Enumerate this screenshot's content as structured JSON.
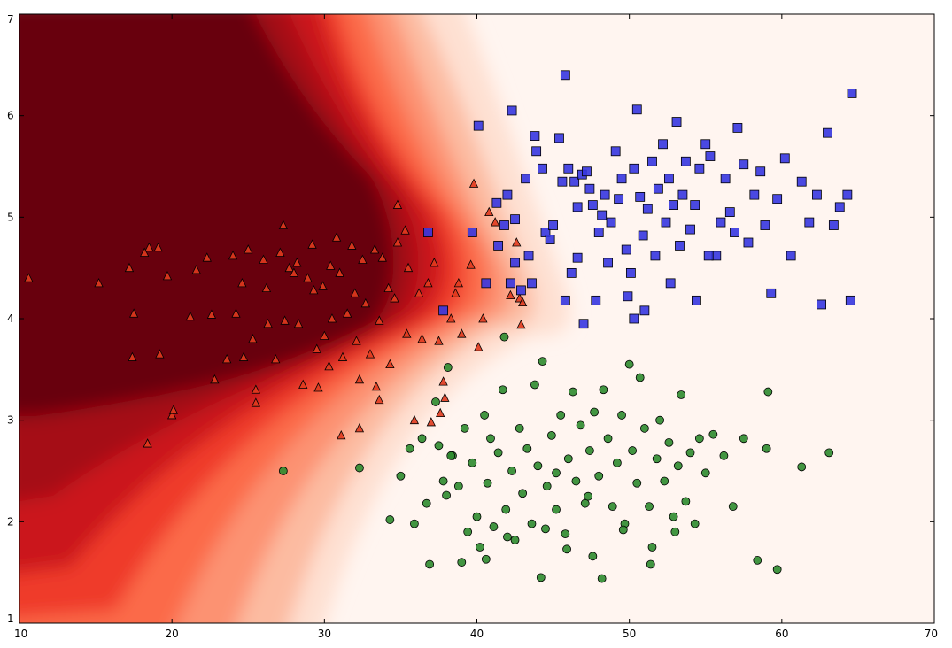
{
  "chart_data": {
    "type": "scatter",
    "title": "",
    "xlabel": "",
    "ylabel": "",
    "xlim": [
      10,
      70
    ],
    "ylim": [
      1,
      7
    ],
    "x_ticks": [
      "10",
      "20",
      "30",
      "40",
      "50",
      "60",
      "70"
    ],
    "y_ticks": [
      "1",
      "2",
      "3",
      "4",
      "5",
      "6",
      "7"
    ],
    "grid": false,
    "legend": "none",
    "background": {
      "kind": "filled-contour",
      "colormap": "Reds",
      "colors": [
        "#fff5f0",
        "#fee0d2",
        "#fcbba1",
        "#fc9272",
        "#fb6a4a",
        "#ef3b2c",
        "#cb181d",
        "#a50f15",
        "#67000d"
      ],
      "description": "probability of triangle class"
    },
    "series": [
      {
        "marker": "triangle",
        "color": "#e03a1e",
        "points": [
          [
            10.6,
            4.4
          ],
          [
            15.2,
            4.35
          ],
          [
            17.2,
            4.5
          ],
          [
            17.5,
            4.05
          ],
          [
            17.4,
            3.62
          ],
          [
            18.2,
            4.65
          ],
          [
            18.5,
            4.7
          ],
          [
            18.4,
            2.77
          ],
          [
            19.1,
            4.7
          ],
          [
            19.2,
            3.65
          ],
          [
            19.7,
            4.42
          ],
          [
            20.0,
            3.05
          ],
          [
            20.1,
            3.1
          ],
          [
            21.2,
            4.02
          ],
          [
            21.6,
            4.48
          ],
          [
            22.3,
            4.6
          ],
          [
            22.6,
            4.04
          ],
          [
            22.8,
            3.4
          ],
          [
            23.6,
            3.6
          ],
          [
            24.0,
            4.62
          ],
          [
            24.2,
            4.05
          ],
          [
            24.6,
            4.35
          ],
          [
            25.0,
            4.68
          ],
          [
            24.7,
            3.62
          ],
          [
            25.3,
            3.8
          ],
          [
            25.5,
            3.3
          ],
          [
            25.5,
            3.17
          ],
          [
            26.0,
            4.58
          ],
          [
            26.2,
            4.3
          ],
          [
            26.3,
            3.95
          ],
          [
            26.8,
            3.6
          ],
          [
            27.1,
            4.65
          ],
          [
            27.3,
            4.92
          ],
          [
            27.7,
            4.5
          ],
          [
            27.4,
            3.98
          ],
          [
            28.0,
            4.45
          ],
          [
            28.2,
            4.55
          ],
          [
            28.3,
            3.95
          ],
          [
            28.6,
            3.35
          ],
          [
            28.9,
            4.4
          ],
          [
            29.2,
            4.73
          ],
          [
            29.3,
            4.28
          ],
          [
            29.5,
            3.7
          ],
          [
            29.6,
            3.32
          ],
          [
            29.9,
            4.32
          ],
          [
            30.0,
            3.83
          ],
          [
            30.3,
            3.53
          ],
          [
            30.4,
            4.52
          ],
          [
            30.5,
            4.0
          ],
          [
            30.8,
            4.8
          ],
          [
            31.0,
            4.45
          ],
          [
            31.2,
            3.62
          ],
          [
            31.1,
            2.85
          ],
          [
            31.5,
            4.05
          ],
          [
            31.8,
            4.72
          ],
          [
            32.0,
            4.25
          ],
          [
            32.1,
            3.78
          ],
          [
            32.3,
            3.4
          ],
          [
            32.3,
            2.92
          ],
          [
            32.5,
            4.58
          ],
          [
            32.7,
            4.15
          ],
          [
            33.0,
            3.65
          ],
          [
            33.3,
            4.68
          ],
          [
            33.4,
            3.33
          ],
          [
            33.6,
            3.98
          ],
          [
            33.6,
            3.2
          ],
          [
            33.8,
            4.6
          ],
          [
            34.2,
            4.3
          ],
          [
            34.3,
            3.55
          ],
          [
            34.6,
            4.2
          ],
          [
            34.8,
            5.12
          ],
          [
            34.8,
            4.75
          ],
          [
            35.3,
            4.87
          ],
          [
            35.4,
            3.85
          ],
          [
            35.5,
            4.5
          ],
          [
            35.9,
            3.0
          ],
          [
            36.2,
            4.25
          ],
          [
            36.4,
            3.8
          ],
          [
            36.8,
            4.35
          ],
          [
            37.0,
            2.98
          ],
          [
            37.2,
            4.55
          ],
          [
            37.5,
            3.78
          ],
          [
            37.8,
            3.38
          ],
          [
            37.9,
            3.22
          ],
          [
            37.6,
            3.07
          ],
          [
            38.3,
            4.0
          ],
          [
            38.6,
            4.25
          ],
          [
            38.8,
            4.35
          ],
          [
            39.0,
            3.85
          ],
          [
            39.6,
            4.53
          ],
          [
            39.8,
            5.33
          ],
          [
            40.1,
            3.72
          ],
          [
            40.4,
            4.0
          ],
          [
            40.8,
            5.05
          ],
          [
            41.2,
            4.95
          ],
          [
            42.2,
            4.23
          ],
          [
            42.6,
            4.75
          ],
          [
            42.8,
            4.2
          ],
          [
            43.0,
            4.16
          ],
          [
            42.9,
            3.94
          ]
        ]
      },
      {
        "marker": "square",
        "color": "#3636e0",
        "points": [
          [
            36.8,
            4.85
          ],
          [
            37.8,
            4.08
          ],
          [
            39.7,
            4.85
          ],
          [
            40.1,
            5.9
          ],
          [
            40.6,
            4.35
          ],
          [
            41.3,
            5.14
          ],
          [
            41.4,
            4.72
          ],
          [
            41.8,
            4.92
          ],
          [
            42.0,
            5.22
          ],
          [
            42.2,
            4.35
          ],
          [
            42.3,
            6.05
          ],
          [
            42.5,
            4.98
          ],
          [
            42.5,
            4.55
          ],
          [
            42.9,
            4.28
          ],
          [
            43.2,
            5.38
          ],
          [
            43.4,
            4.62
          ],
          [
            43.6,
            4.35
          ],
          [
            43.8,
            5.8
          ],
          [
            43.9,
            5.65
          ],
          [
            44.3,
            5.48
          ],
          [
            44.5,
            4.85
          ],
          [
            44.8,
            4.78
          ],
          [
            45.0,
            4.92
          ],
          [
            45.4,
            5.78
          ],
          [
            45.6,
            5.35
          ],
          [
            45.8,
            6.4
          ],
          [
            46.0,
            5.48
          ],
          [
            46.4,
            5.35
          ],
          [
            46.6,
            5.1
          ],
          [
            46.9,
            5.42
          ],
          [
            47.2,
            5.45
          ],
          [
            47.4,
            5.28
          ],
          [
            47.6,
            5.12
          ],
          [
            47.8,
            4.18
          ],
          [
            48.0,
            4.85
          ],
          [
            48.2,
            5.02
          ],
          [
            48.4,
            5.22
          ],
          [
            48.6,
            4.55
          ],
          [
            48.8,
            4.95
          ],
          [
            49.1,
            5.65
          ],
          [
            49.3,
            5.18
          ],
          [
            49.5,
            5.38
          ],
          [
            49.8,
            4.68
          ],
          [
            50.1,
            4.45
          ],
          [
            50.3,
            5.48
          ],
          [
            50.5,
            6.06
          ],
          [
            50.7,
            5.2
          ],
          [
            50.9,
            4.82
          ],
          [
            51.2,
            5.08
          ],
          [
            51.5,
            5.55
          ],
          [
            51.7,
            4.62
          ],
          [
            51.9,
            5.28
          ],
          [
            52.2,
            5.72
          ],
          [
            52.4,
            4.95
          ],
          [
            52.6,
            5.38
          ],
          [
            52.9,
            5.12
          ],
          [
            53.1,
            5.94
          ],
          [
            53.3,
            4.72
          ],
          [
            53.5,
            5.22
          ],
          [
            53.7,
            5.55
          ],
          [
            54.0,
            4.88
          ],
          [
            54.3,
            5.12
          ],
          [
            54.6,
            5.48
          ],
          [
            55.0,
            5.72
          ],
          [
            55.3,
            5.6
          ],
          [
            55.7,
            4.62
          ],
          [
            56.0,
            4.95
          ],
          [
            56.3,
            5.38
          ],
          [
            56.6,
            5.05
          ],
          [
            56.9,
            4.85
          ],
          [
            57.1,
            5.88
          ],
          [
            57.5,
            5.52
          ],
          [
            57.8,
            4.75
          ],
          [
            58.2,
            5.22
          ],
          [
            58.6,
            5.45
          ],
          [
            58.9,
            4.92
          ],
          [
            59.3,
            4.25
          ],
          [
            59.7,
            5.18
          ],
          [
            60.2,
            5.58
          ],
          [
            60.6,
            4.62
          ],
          [
            61.3,
            5.35
          ],
          [
            61.8,
            4.95
          ],
          [
            62.3,
            5.22
          ],
          [
            62.6,
            4.14
          ],
          [
            63.0,
            5.83
          ],
          [
            63.4,
            4.92
          ],
          [
            63.8,
            5.1
          ],
          [
            64.3,
            5.22
          ],
          [
            64.6,
            6.22
          ],
          [
            64.5,
            4.18
          ],
          [
            46.2,
            4.45
          ],
          [
            47.0,
            3.95
          ],
          [
            49.9,
            4.22
          ],
          [
            51.0,
            4.08
          ],
          [
            52.7,
            4.35
          ],
          [
            54.4,
            4.18
          ],
          [
            55.2,
            4.62
          ],
          [
            50.3,
            4.0
          ],
          [
            46.6,
            4.6
          ],
          [
            45.8,
            4.18
          ]
        ]
      },
      {
        "marker": "circle",
        "color": "#2e8b2e",
        "points": [
          [
            27.3,
            2.5
          ],
          [
            32.3,
            2.53
          ],
          [
            34.3,
            2.02
          ],
          [
            35.0,
            2.45
          ],
          [
            35.6,
            2.72
          ],
          [
            35.9,
            1.98
          ],
          [
            36.4,
            2.82
          ],
          [
            36.7,
            2.18
          ],
          [
            36.9,
            1.58
          ],
          [
            37.3,
            3.18
          ],
          [
            37.5,
            2.75
          ],
          [
            37.8,
            2.4
          ],
          [
            38.0,
            2.26
          ],
          [
            38.1,
            3.52
          ],
          [
            38.4,
            2.65
          ],
          [
            38.8,
            2.35
          ],
          [
            39.0,
            1.6
          ],
          [
            39.2,
            2.92
          ],
          [
            39.4,
            1.9
          ],
          [
            39.7,
            2.58
          ],
          [
            40.0,
            2.05
          ],
          [
            40.2,
            1.75
          ],
          [
            40.5,
            3.05
          ],
          [
            40.7,
            2.38
          ],
          [
            40.9,
            2.82
          ],
          [
            41.1,
            1.95
          ],
          [
            41.4,
            2.68
          ],
          [
            41.7,
            3.3
          ],
          [
            41.9,
            2.12
          ],
          [
            41.8,
            3.82
          ],
          [
            42.3,
            2.5
          ],
          [
            42.5,
            1.82
          ],
          [
            42.8,
            2.92
          ],
          [
            43.0,
            2.28
          ],
          [
            43.3,
            2.72
          ],
          [
            43.6,
            1.98
          ],
          [
            43.8,
            3.35
          ],
          [
            44.0,
            2.55
          ],
          [
            44.2,
            1.45
          ],
          [
            44.3,
            3.58
          ],
          [
            44.6,
            2.35
          ],
          [
            44.9,
            2.85
          ],
          [
            45.2,
            2.12
          ],
          [
            45.5,
            3.05
          ],
          [
            45.8,
            1.88
          ],
          [
            46.0,
            2.62
          ],
          [
            46.3,
            3.28
          ],
          [
            46.5,
            2.4
          ],
          [
            46.8,
            2.95
          ],
          [
            47.1,
            2.18
          ],
          [
            47.4,
            2.7
          ],
          [
            47.7,
            3.08
          ],
          [
            48.0,
            2.45
          ],
          [
            48.2,
            1.44
          ],
          [
            48.3,
            3.3
          ],
          [
            48.6,
            2.82
          ],
          [
            48.9,
            2.15
          ],
          [
            49.2,
            2.58
          ],
          [
            49.5,
            3.05
          ],
          [
            49.7,
            1.98
          ],
          [
            50.0,
            3.55
          ],
          [
            50.2,
            2.7
          ],
          [
            50.5,
            2.38
          ],
          [
            50.7,
            3.42
          ],
          [
            51.0,
            2.92
          ],
          [
            51.3,
            2.15
          ],
          [
            51.5,
            1.75
          ],
          [
            51.8,
            2.62
          ],
          [
            52.0,
            3.0
          ],
          [
            52.3,
            2.4
          ],
          [
            52.6,
            2.78
          ],
          [
            52.9,
            2.05
          ],
          [
            53.2,
            2.55
          ],
          [
            53.4,
            3.25
          ],
          [
            53.7,
            2.2
          ],
          [
            54.0,
            2.68
          ],
          [
            54.3,
            1.98
          ],
          [
            54.6,
            2.82
          ],
          [
            55.0,
            2.48
          ],
          [
            55.5,
            2.86
          ],
          [
            56.2,
            2.65
          ],
          [
            56.8,
            2.15
          ],
          [
            57.5,
            2.82
          ],
          [
            58.4,
            1.62
          ],
          [
            59.0,
            2.72
          ],
          [
            59.1,
            3.28
          ],
          [
            59.7,
            1.53
          ],
          [
            61.3,
            2.54
          ],
          [
            63.1,
            2.68
          ],
          [
            38.3,
            2.65
          ],
          [
            40.6,
            1.63
          ],
          [
            42.0,
            1.85
          ],
          [
            44.5,
            1.93
          ],
          [
            45.9,
            1.73
          ],
          [
            47.6,
            1.66
          ],
          [
            49.6,
            1.92
          ],
          [
            51.4,
            1.58
          ],
          [
            53.0,
            1.9
          ],
          [
            45.2,
            2.48
          ],
          [
            47.3,
            2.25
          ]
        ]
      }
    ]
  }
}
